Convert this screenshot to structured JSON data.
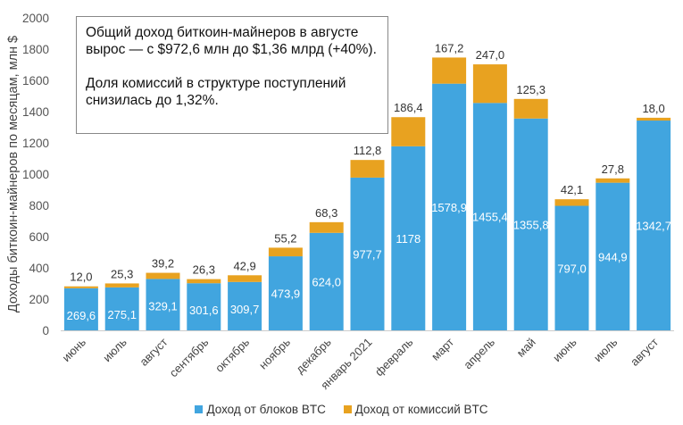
{
  "chart_data": {
    "type": "bar",
    "stacked": true,
    "ylabel": "Доходы биткоин-майнеров по месяцам, млн $",
    "ylim": [
      0,
      2000
    ],
    "yticks": [
      0,
      200,
      400,
      600,
      800,
      1000,
      1200,
      1400,
      1600,
      1800,
      2000
    ],
    "grid": false,
    "legend_position": "bottom",
    "categories": [
      "июнь",
      "июль",
      "август",
      "сентябрь",
      "октябрь",
      "ноябрь",
      "декабрь",
      "январь 2021",
      "февраль",
      "март",
      "апрель",
      "май",
      "июнь",
      "июль",
      "август"
    ],
    "series": [
      {
        "name": "Доход от блоков BTC",
        "color": "#41A5DF",
        "values": [
          269.6,
          275.1,
          329.1,
          301.6,
          309.7,
          473.9,
          624.0,
          977.7,
          1178,
          1578.9,
          1455.4,
          1355.8,
          797.0,
          944.9,
          1342.7
        ],
        "labels": [
          "269,6",
          "275,1",
          "329,1",
          "301,6",
          "309,7",
          "473,9",
          "624,0",
          "977,7",
          "1178",
          "1578,9",
          "1455,4",
          "1355,8",
          "797,0",
          "944,9",
          "1342,7"
        ]
      },
      {
        "name": "Доход от комиссий BTC",
        "color": "#E8A220",
        "values": [
          12.0,
          25.3,
          39.2,
          26.3,
          42.9,
          55.2,
          68.3,
          112.8,
          186.4,
          167.2,
          247.0,
          125.3,
          42.1,
          27.8,
          18.0
        ],
        "labels": [
          "12,0",
          "25,3",
          "39,2",
          "26,3",
          "42,9",
          "55,2",
          "68,3",
          "112,8",
          "186,4",
          "167,2",
          "247,0",
          "125,3",
          "42,1",
          "27,8",
          "18,0"
        ]
      }
    ]
  },
  "annotation": {
    "line1": "Общий доход биткоин-майнеров в августе  вырос — с $972,6 млн до $1,36 млрд (+40%).",
    "line2": "Доля комиссий в структуре поступлений снизилась до 1,32%."
  }
}
